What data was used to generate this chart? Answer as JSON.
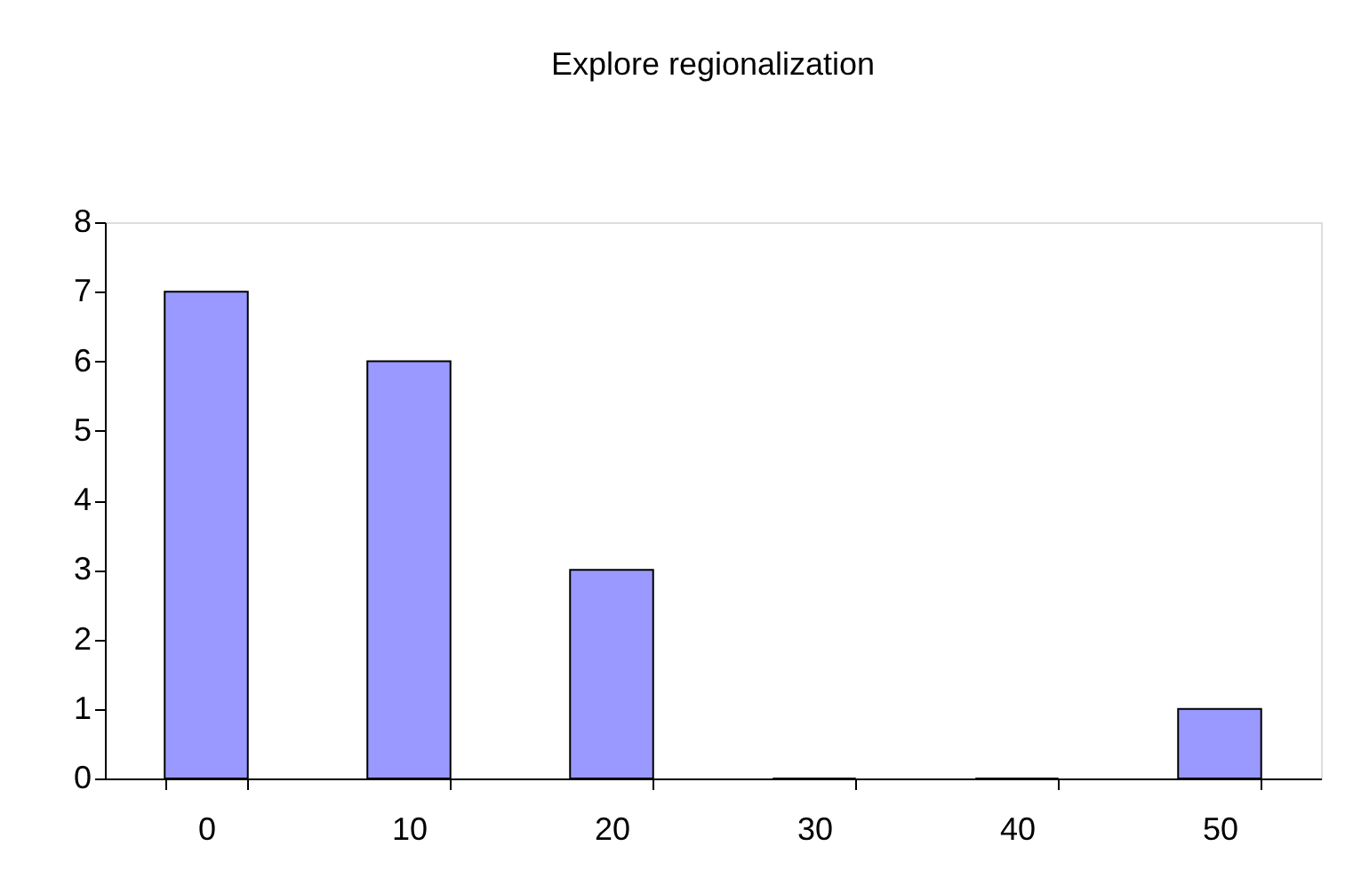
{
  "chart_data": {
    "type": "bar",
    "title": "Explore regionalization",
    "categories": [
      "0",
      "10",
      "20",
      "30",
      "40",
      "50"
    ],
    "values": [
      7,
      6,
      3,
      0,
      0,
      1
    ],
    "color": "#9999ff",
    "ylim": [
      0,
      8
    ],
    "yticks": [
      0,
      1,
      2,
      3,
      4,
      5,
      6,
      7,
      8
    ],
    "grid": false
  }
}
